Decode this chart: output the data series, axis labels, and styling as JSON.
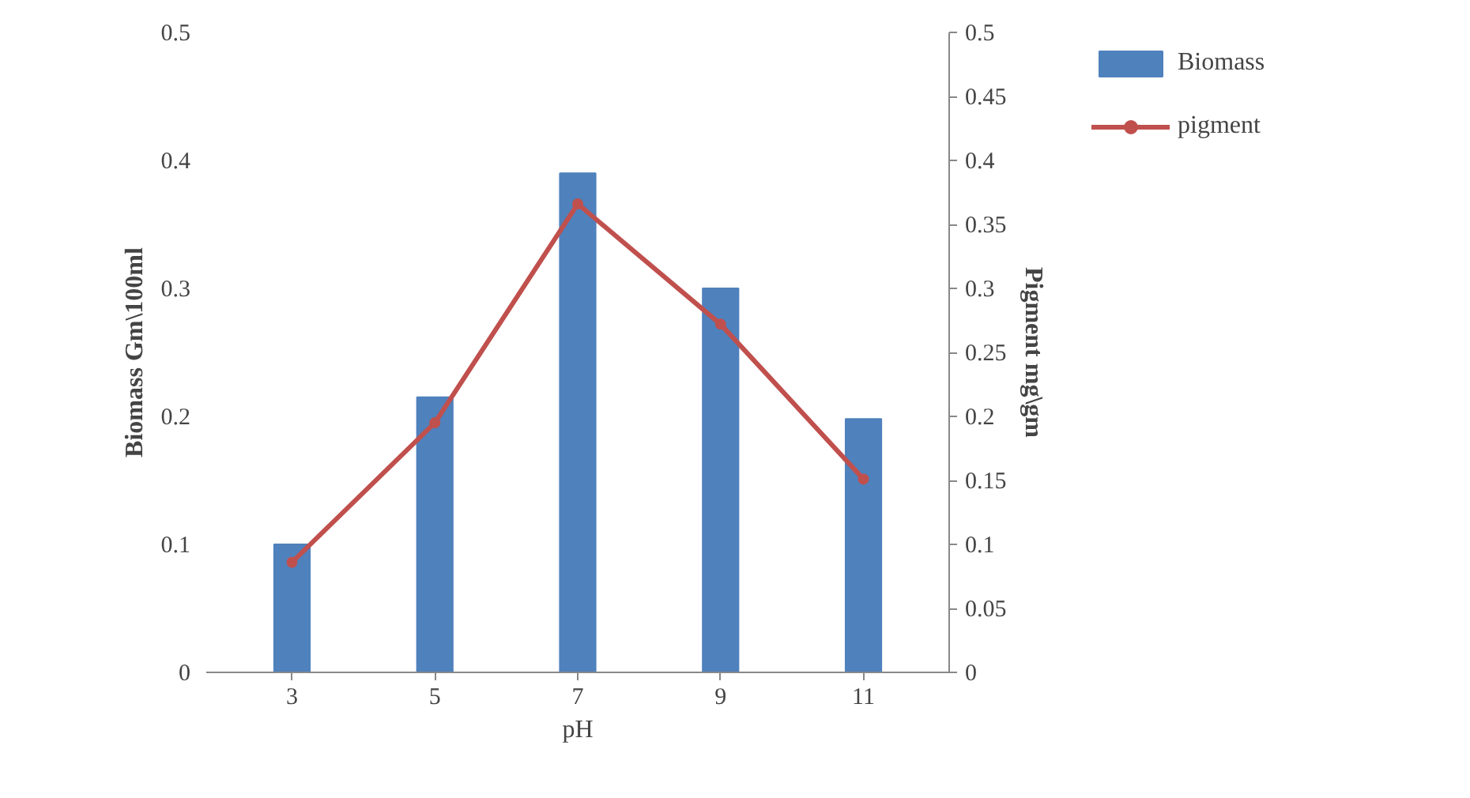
{
  "chart_data": {
    "type": "bar",
    "xlabel": "pH",
    "ylabel": "Biomass Gm\\100ml",
    "y2label": "Pigment mg\\gm",
    "categories": [
      "3",
      "5",
      "7",
      "9",
      "11"
    ],
    "series": [
      {
        "name": "Biomass",
        "color": "#4f81bd",
        "values": [
          0.1,
          0.215,
          0.39,
          0.3,
          0.198
        ]
      },
      {
        "name": "pigment",
        "color": "#c0504d",
        "type": "line",
        "axis": "y2",
        "marker": "circle",
        "values": [
          0.086,
          0.195,
          0.366,
          0.272,
          0.151
        ]
      }
    ],
    "ylim": [
      0,
      0.5
    ],
    "yticks": [
      0,
      0.1,
      0.2,
      0.3,
      0.4,
      0.5
    ],
    "y2lim": [
      0,
      0.5
    ],
    "y2ticks": [
      0,
      0.05,
      0.1,
      0.15,
      0.2,
      0.25,
      0.3,
      0.35,
      0.4,
      0.45,
      0.5
    ],
    "grid": false,
    "legend": "top right"
  }
}
